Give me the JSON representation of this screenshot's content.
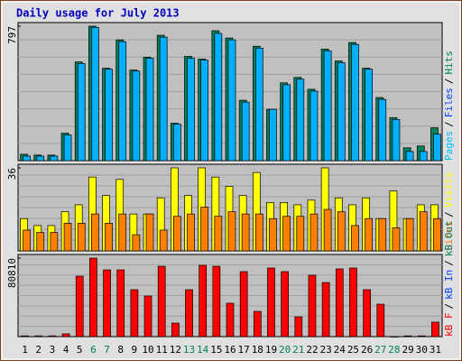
{
  "title": "Daily usage for July 2013",
  "legend_separator": "/",
  "chart_data": [
    {
      "type": "bar",
      "ylim": [
        0,
        797
      ],
      "yticks": [
        797
      ],
      "legend": [
        {
          "name": "Pages",
          "color": "#00c0ff"
        },
        {
          "name": "Files",
          "color": "#0040ff"
        },
        {
          "name": "Hits",
          "color": "#00805c"
        }
      ],
      "series": [
        {
          "name": "Hits",
          "color": "#00805c",
          "values": [
            38,
            33,
            33,
            163,
            585,
            797,
            548,
            716,
            537,
            613,
            743,
            222,
            618,
            602,
            770,
            727,
            358,
            678,
            304,
            461,
            493,
            423,
            661,
            591,
            700,
            548,
            374,
            255,
            76,
            87,
            195
          ]
        },
        {
          "name": "Files",
          "color": "#00b0ff",
          "values": [
            27,
            27,
            27,
            152,
            575,
            790,
            542,
            705,
            531,
            607,
            732,
            217,
            607,
            596,
            754,
            716,
            347,
            667,
            304,
            450,
            483,
            412,
            651,
            580,
            689,
            542,
            363,
            244,
            54,
            54,
            157
          ]
        }
      ]
    },
    {
      "type": "bar",
      "ylim": [
        0,
        36
      ],
      "yticks": [
        36
      ],
      "legend": [
        {
          "name": "Sites",
          "color": "#ff8000"
        },
        {
          "name": "Visits",
          "color": "#ffff00"
        }
      ],
      "series": [
        {
          "name": "Visits",
          "color": "#ffff00",
          "values": [
            14,
            11,
            11,
            17,
            20,
            32,
            24,
            31,
            16,
            16,
            23,
            36,
            24,
            36,
            32,
            28,
            24,
            34,
            21,
            21,
            20,
            22,
            36,
            23,
            20,
            23,
            14,
            26,
            14,
            20,
            20
          ]
        },
        {
          "name": "Sites",
          "color": "#ff8000",
          "values": [
            9,
            8,
            8,
            12,
            12,
            16,
            12,
            16,
            7,
            16,
            9,
            15,
            16,
            19,
            15,
            17,
            16,
            16,
            14,
            15,
            15,
            16,
            18,
            17,
            11,
            14,
            14,
            10,
            14,
            17,
            14
          ]
        }
      ]
    },
    {
      "type": "bar",
      "ylim": [
        0,
        80810
      ],
      "yticks": [
        80810
      ],
      "legend": [
        {
          "name": "kB F",
          "color": "#ff0000"
        },
        {
          "name": "kB In",
          "color": "#0040ff"
        },
        {
          "name": "kB Out",
          "color": "#00805c"
        }
      ],
      "categories": [
        "1",
        "2",
        "3",
        "4",
        "5",
        "6",
        "7",
        "8",
        "9",
        "10",
        "11",
        "12",
        "13",
        "14",
        "15",
        "16",
        "17",
        "18",
        "19",
        "20",
        "21",
        "22",
        "23",
        "24",
        "25",
        "26",
        "27",
        "28",
        "29",
        "30",
        "31"
      ],
      "weekend": [
        false,
        false,
        false,
        false,
        false,
        true,
        true,
        false,
        false,
        false,
        false,
        false,
        true,
        true,
        false,
        false,
        false,
        false,
        false,
        true,
        true,
        false,
        false,
        false,
        false,
        false,
        true,
        true,
        false,
        false,
        false
      ],
      "series": [
        {
          "name": "kB F",
          "color": "#ff0000",
          "values": [
            800,
            800,
            800,
            2800,
            62200,
            80810,
            68700,
            68700,
            48300,
            41800,
            72400,
            13900,
            48300,
            73400,
            72400,
            34400,
            66900,
            26000,
            70600,
            66900,
            20400,
            63200,
            55700,
            69700,
            70600,
            48300,
            33400,
            0,
            800,
            800,
            14900
          ]
        }
      ]
    }
  ]
}
